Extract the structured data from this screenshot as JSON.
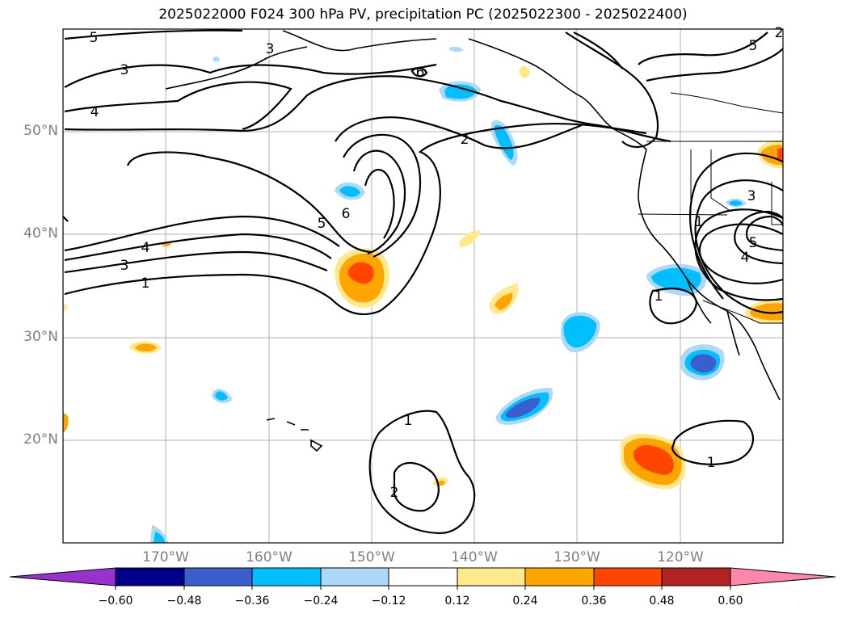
{
  "title": "2025022000 F024 300 hPa PV, precipitation PC (2025022300 - 2025022400)",
  "map": {
    "lat_ticks": [
      "50°N",
      "40°N",
      "30°N",
      "20°N"
    ],
    "lon_ticks": [
      "170°W",
      "160°W",
      "150°W",
      "140°W",
      "130°W",
      "120°W"
    ],
    "contour_labels": [
      "5",
      "3",
      "4",
      "3",
      "6",
      "2",
      "5",
      "6",
      "5",
      "4",
      "3",
      "1",
      "2",
      "3",
      "1",
      "5",
      "4",
      "1",
      "1",
      "2",
      "1"
    ]
  },
  "colorbar": {
    "ticks": [
      "−0.60",
      "−0.48",
      "−0.36",
      "−0.24",
      "−0.12",
      "0.12",
      "0.24",
      "0.36",
      "0.48",
      "0.60"
    ],
    "colors": [
      "#9932cc",
      "#00008b",
      "#3a5fcd",
      "#00bfff",
      "#add8f7",
      "#ffffff",
      "#ffe98a",
      "#ffa500",
      "#ff4500",
      "#b22222",
      "#ff88aa"
    ]
  },
  "chart_data": {
    "type": "contour-map",
    "title": "2025022000 F024 300 hPa PV, precipitation PC (2025022300 - 2025022400)",
    "projection": "PlateCarree",
    "lon_range": [
      -180,
      -110
    ],
    "lat_range": [
      10,
      60
    ],
    "lat_ticks": [
      50,
      40,
      30,
      20
    ],
    "lon_ticks": [
      -170,
      -160,
      -150,
      -140,
      -130,
      -120
    ],
    "grid": true,
    "contour_field": "300 hPa PV",
    "contour_levels": [
      1,
      2,
      3,
      4,
      5,
      6
    ],
    "fill_field": "precipitation PC",
    "colorbar_levels": [
      -0.6,
      -0.48,
      -0.36,
      -0.24,
      -0.12,
      0.12,
      0.24,
      0.36,
      0.48,
      0.6
    ],
    "colorbar_extend": "both"
  }
}
